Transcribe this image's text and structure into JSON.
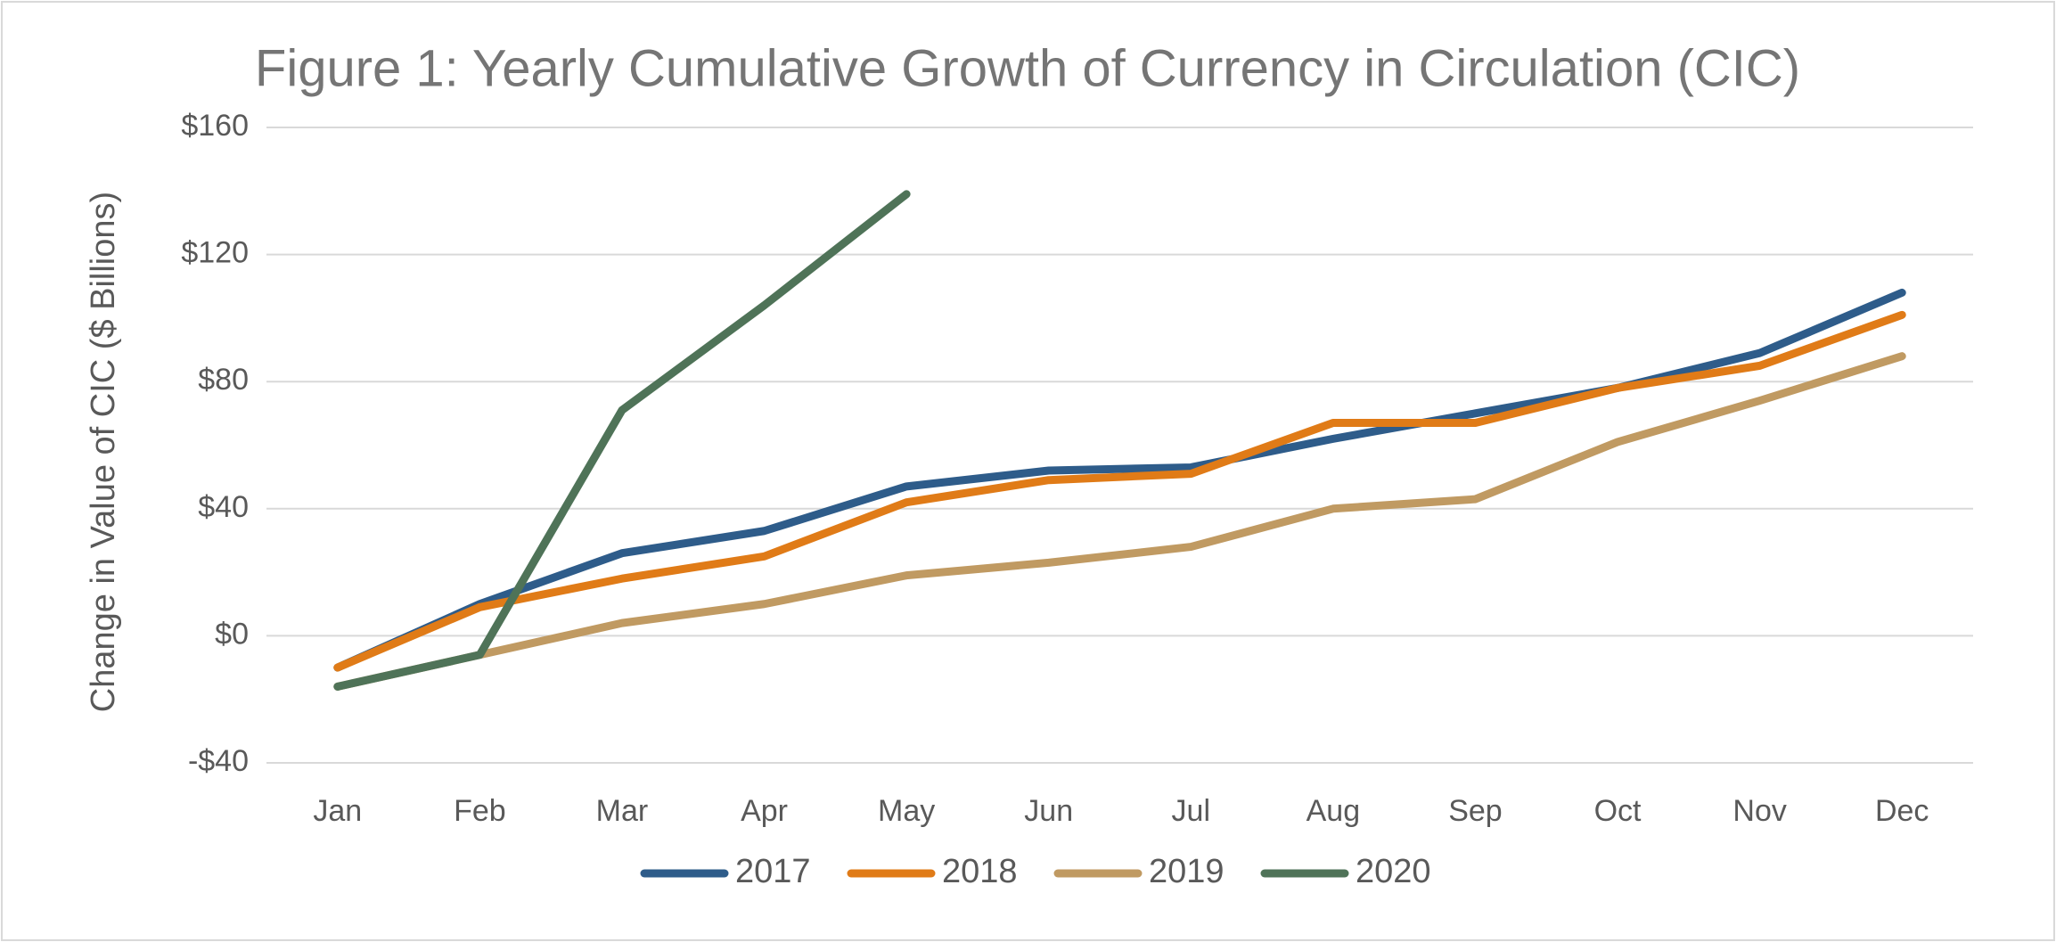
{
  "chart_data": {
    "type": "line",
    "title": "Figure 1: Yearly Cumulative Growth of Currency in Circulation (CIC)",
    "y_label": "Change in Value of CIC ($ Billions)",
    "categories": [
      "Jan",
      "Feb",
      "Mar",
      "Apr",
      "May",
      "Jun",
      "Jul",
      "Aug",
      "Sep",
      "Oct",
      "Nov",
      "Dec"
    ],
    "series": [
      {
        "name": "2017",
        "color": "#2e5c8a",
        "values": [
          -10,
          10,
          26,
          33,
          47,
          52,
          53,
          62,
          70,
          78,
          89,
          108
        ]
      },
      {
        "name": "2018",
        "color": "#e07b17",
        "values": [
          -10,
          9,
          18,
          25,
          42,
          49,
          51,
          67,
          67,
          78,
          85,
          101
        ]
      },
      {
        "name": "2019",
        "color": "#c09a62",
        "values": [
          -16,
          -6,
          4,
          10,
          19,
          23,
          28,
          40,
          43,
          61,
          74,
          88
        ]
      },
      {
        "name": "2020",
        "color": "#4f7358",
        "values": [
          -16,
          -6,
          71,
          104,
          139,
          null,
          null,
          null,
          null,
          null,
          null,
          null
        ]
      }
    ],
    "ylim": [
      -40,
      160
    ],
    "yticks": [
      {
        "value": -40,
        "label": "-$40"
      },
      {
        "value": 0,
        "label": "$0"
      },
      {
        "value": 40,
        "label": "$40"
      },
      {
        "value": 80,
        "label": "$80"
      },
      {
        "value": 120,
        "label": "$120"
      },
      {
        "value": 160,
        "label": "$160"
      }
    ],
    "grid": true,
    "legend": "bottom"
  }
}
